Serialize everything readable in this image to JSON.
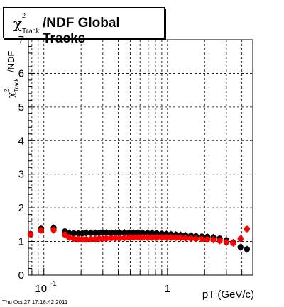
{
  "title": {
    "symbol": "χ",
    "superscript": "2",
    "subscript": "Track",
    "text": "/NDF  Global Tracks"
  },
  "timestamp": "Thu Oct 27 17:16:42 2011",
  "chart_data": {
    "type": "scatter",
    "x_scale": "log",
    "xlabel": "pT (GeV/c)",
    "ylabel": "χ²Track/NDF",
    "ylabel_parts": {
      "symbol": "χ",
      "superscript": "2",
      "subscript": "Track",
      "suffix": "/NDF"
    },
    "xlim": [
      0.075,
      4.9
    ],
    "ylim": [
      0,
      7
    ],
    "x_ticks": [
      {
        "value": 0.1,
        "label": "10",
        "exponent": "-1"
      },
      {
        "value": 1,
        "label": "1",
        "exponent": ""
      }
    ],
    "y_ticks": [
      0,
      1,
      2,
      3,
      4,
      5,
      6,
      7
    ],
    "grid": true,
    "series": [
      {
        "color": "#000000",
        "x": [
          0.078,
          0.095,
          0.12,
          0.148,
          0.16,
          0.175,
          0.19,
          0.205,
          0.22,
          0.24,
          0.26,
          0.28,
          0.3,
          0.32,
          0.35,
          0.38,
          0.41,
          0.45,
          0.49,
          0.53,
          0.58,
          0.63,
          0.69,
          0.75,
          0.82,
          0.9,
          0.98,
          1.07,
          1.17,
          1.28,
          1.4,
          1.55,
          1.7,
          1.9,
          2.1,
          2.35,
          2.65,
          3.0,
          3.4,
          3.9,
          4.4
        ],
        "y": [
          1.22,
          1.38,
          1.4,
          1.3,
          1.25,
          1.24,
          1.24,
          1.24,
          1.25,
          1.25,
          1.25,
          1.25,
          1.26,
          1.26,
          1.26,
          1.26,
          1.26,
          1.26,
          1.26,
          1.26,
          1.26,
          1.25,
          1.25,
          1.25,
          1.24,
          1.23,
          1.22,
          1.21,
          1.2,
          1.19,
          1.18,
          1.17,
          1.16,
          1.15,
          1.14,
          1.12,
          1.09,
          1.04,
          0.97,
          0.83,
          0.77
        ]
      },
      {
        "color": "#ff0000",
        "x": [
          0.078,
          0.095,
          0.12,
          0.148,
          0.16,
          0.175,
          0.19,
          0.205,
          0.22,
          0.24,
          0.26,
          0.28,
          0.3,
          0.32,
          0.35,
          0.38,
          0.41,
          0.45,
          0.49,
          0.53,
          0.58,
          0.63,
          0.69,
          0.75,
          0.82,
          0.9,
          0.98,
          1.07,
          1.17,
          1.28,
          1.4,
          1.55,
          1.7,
          1.9,
          2.1,
          2.35,
          2.65,
          3.0,
          3.4,
          3.9,
          4.4
        ],
        "y": [
          1.21,
          1.33,
          1.34,
          1.2,
          1.12,
          1.08,
          1.07,
          1.06,
          1.06,
          1.07,
          1.07,
          1.08,
          1.08,
          1.09,
          1.1,
          1.1,
          1.1,
          1.11,
          1.12,
          1.12,
          1.12,
          1.12,
          1.12,
          1.12,
          1.12,
          1.12,
          1.12,
          1.12,
          1.11,
          1.11,
          1.1,
          1.09,
          1.08,
          1.07,
          1.06,
          1.05,
          1.02,
          0.98,
          0.95,
          1.08,
          1.37
        ]
      }
    ]
  }
}
